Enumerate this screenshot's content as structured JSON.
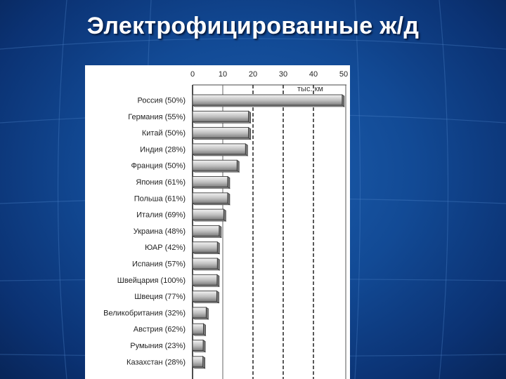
{
  "slide": {
    "title": "Электрофицированные ж/д"
  },
  "chart_data": {
    "type": "bar",
    "orientation": "horizontal",
    "unit_label": "тыс. км",
    "xlim": [
      0,
      50
    ],
    "xticks": [
      0,
      10,
      20,
      30,
      40,
      50
    ],
    "dashed_gridlines_at": [
      20,
      30,
      40
    ],
    "categories": [
      "Россия (50%)",
      "Германия (55%)",
      "Китай (50%)",
      "Индия (28%)",
      "Франция (50%)",
      "Япония (61%)",
      "Польша (61%)",
      "Италия (69%)",
      "Украина (48%)",
      "ЮАР (42%)",
      "Испания (57%)",
      "Швейцария (100%)",
      "Швеция (77%)",
      "Великобритания (32%)",
      "Австрия (62%)",
      "Румыния (23%)",
      "Казахстан (28%)"
    ],
    "values": [
      49.5,
      18.5,
      18.5,
      17.5,
      14.7,
      11.6,
      11.6,
      10.3,
      8.8,
      8.2,
      8.2,
      8.1,
      8.0,
      4.5,
      3.6,
      3.5,
      3.4
    ],
    "colors": {
      "bar_light": "#f4f4f4",
      "bar_mid": "#bdbdbd",
      "bar_dark": "#7a7a7a",
      "bar_edge": "#3a3a3a",
      "panel": "#ffffff",
      "background": "#124a95"
    }
  }
}
